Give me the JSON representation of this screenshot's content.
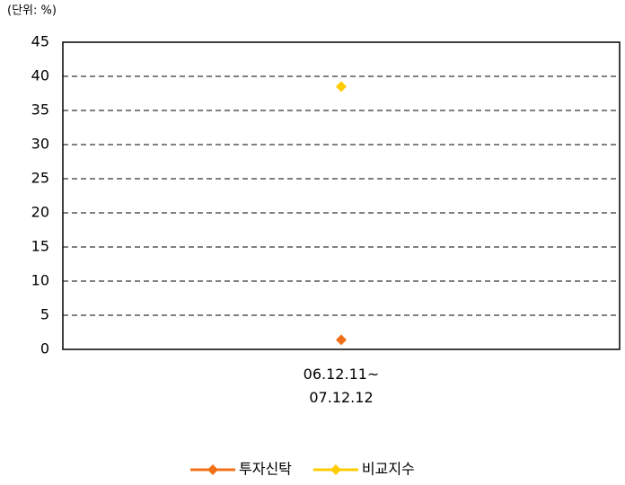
{
  "chart_data": {
    "type": "line",
    "subtitle": "(단위: %)",
    "categories": [
      "06.12.11~\n07.12.12"
    ],
    "series": [
      {
        "name": "투자신탁",
        "color": "#f07018",
        "values": [
          1.4
        ]
      },
      {
        "name": "비교지수",
        "color": "#ffcc00",
        "values": [
          38.5
        ]
      }
    ],
    "ylim": [
      0,
      45
    ],
    "yticks": [
      0,
      5,
      10,
      15,
      20,
      25,
      30,
      35,
      40,
      45
    ],
    "grid": true
  }
}
